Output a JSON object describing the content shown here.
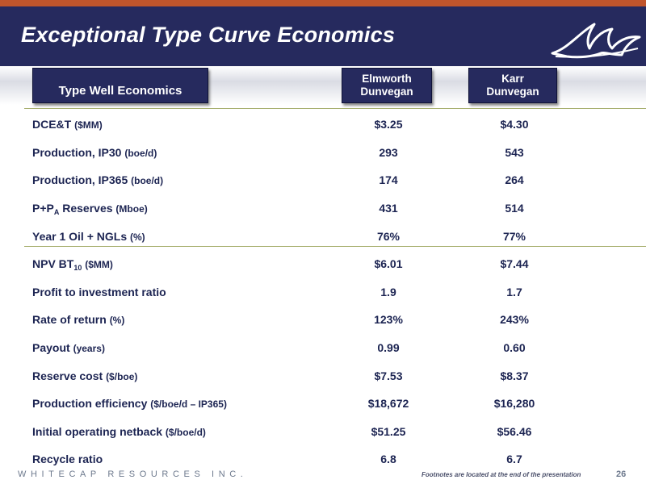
{
  "slide": {
    "title": "Exceptional Type Curve Economics",
    "company": "WHITECAP RESOURCES INC.",
    "footnote": "Footnotes are located at the end of the presentation",
    "page_number": "26"
  },
  "table": {
    "header_label": "Type Well Economics",
    "columns": [
      {
        "line1": "Elmworth",
        "line2": "Dunvegan"
      },
      {
        "line1": "Karr",
        "line2": "Dunvegan"
      }
    ],
    "rows": [
      {
        "label": "DCE&T",
        "unit": "($MM)",
        "values": [
          "$3.25",
          "$4.30"
        ]
      },
      {
        "label": "Production, IP30",
        "unit": "(boe/d)",
        "values": [
          "293",
          "543"
        ]
      },
      {
        "label": "Production, IP365",
        "unit": "(boe/d)",
        "values": [
          "174",
          "264"
        ]
      },
      {
        "label": "P+P",
        "sub": "A",
        "label_after": " Reserves",
        "unit": "(Mboe)",
        "values": [
          "431",
          "514"
        ]
      },
      {
        "label": "Year 1 Oil + NGLs",
        "unit": "(%)",
        "values": [
          "76%",
          "77%"
        ]
      },
      {
        "label": "NPV BT",
        "sub": "10",
        "unit": "($MM)",
        "values": [
          "$6.01",
          "$7.44"
        ]
      },
      {
        "label": "Profit to investment ratio",
        "unit": "",
        "values": [
          "1.9",
          "1.7"
        ]
      },
      {
        "label": "Rate of return",
        "unit": "(%)",
        "values": [
          "123%",
          "243%"
        ]
      },
      {
        "label": "Payout",
        "unit": "(years)",
        "values": [
          "0.99",
          "0.60"
        ]
      },
      {
        "label": "Reserve cost",
        "unit": "($/boe)",
        "values": [
          "$7.53",
          "$8.37"
        ]
      },
      {
        "label": "Production efficiency",
        "unit": "($/boe/d – IP365)",
        "values": [
          "$18,672",
          "$16,280"
        ]
      },
      {
        "label": "Initial operating netback",
        "unit": "($/boe/d)",
        "values": [
          "$51.25",
          "$56.46"
        ]
      },
      {
        "label": "Recycle ratio",
        "unit": "",
        "values": [
          "6.8",
          "6.7"
        ]
      }
    ]
  },
  "colors": {
    "header_bg": "#262a5e",
    "accent_stripe": "#c0552c",
    "text": "#1c2452",
    "separator": "#a8b070"
  },
  "icons": {
    "logo": "whitecap-wave-logo"
  }
}
